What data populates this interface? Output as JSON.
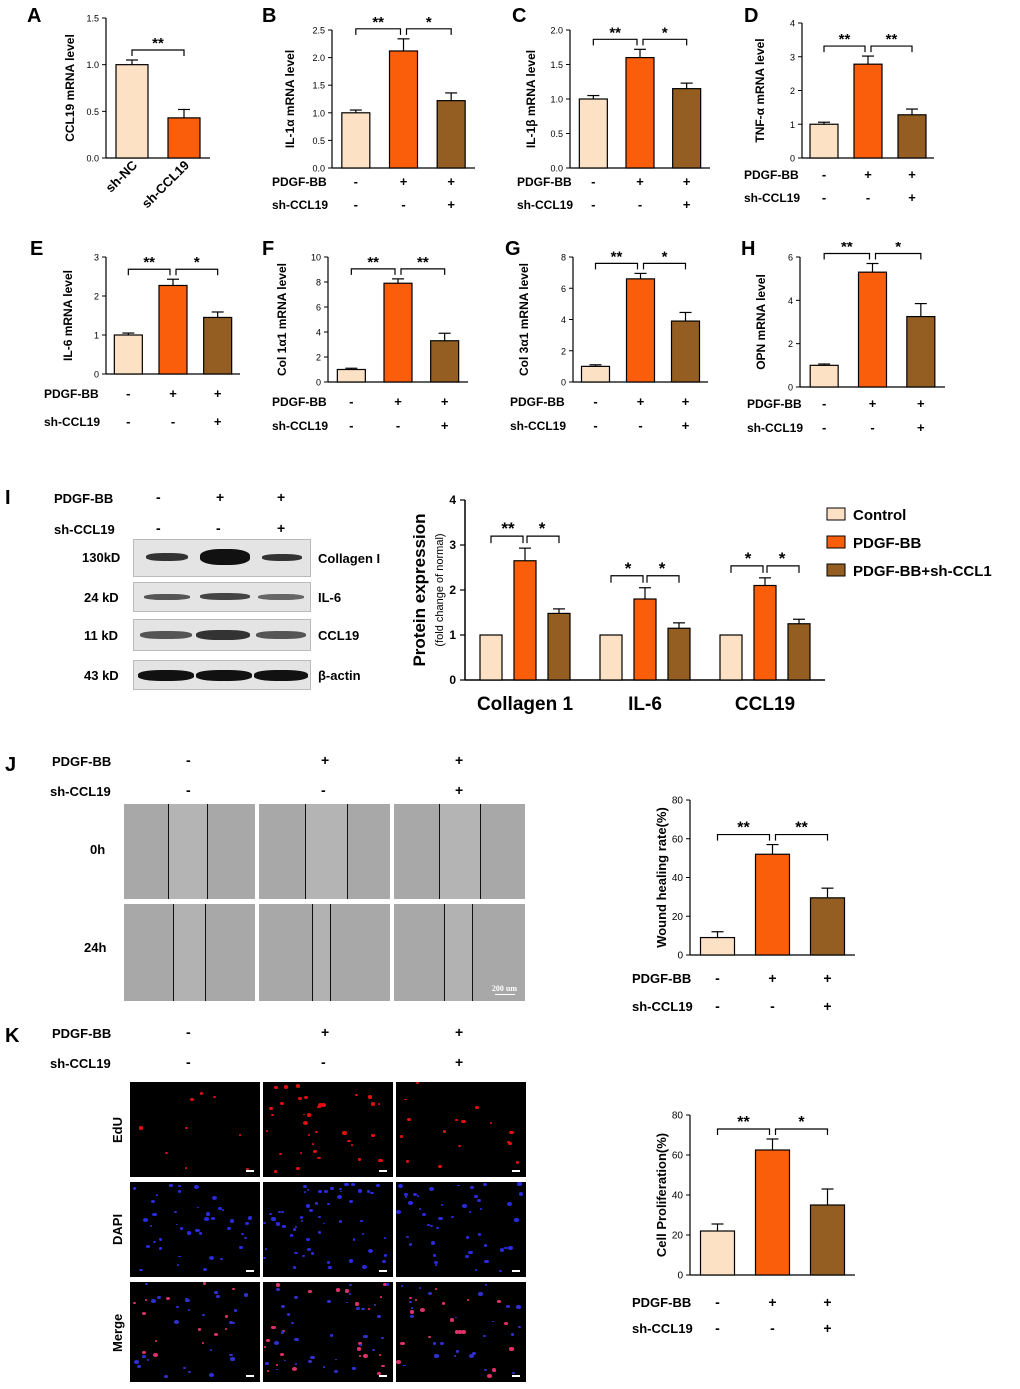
{
  "colors": {
    "control": "#FCE1C4",
    "pdgf": "#FB5E0A",
    "sh": "#945E22",
    "sem": "#000000"
  },
  "panels": {
    "A": "A",
    "B": "B",
    "C": "C",
    "D": "D",
    "E": "E",
    "F": "F",
    "G": "G",
    "H": "H",
    "I": "I",
    "J": "J",
    "K": "K"
  },
  "chart_data": [
    {
      "id": "A",
      "type": "bar",
      "ylabel": "CCL19 mRNA level",
      "categories": [
        "sh-NC",
        "sh-CCL19"
      ],
      "values": [
        1.0,
        0.43
      ],
      "errors": [
        0.05,
        0.09
      ],
      "ylim": [
        0,
        1.5
      ],
      "ticks": [
        0.0,
        0.5,
        1.0,
        1.5
      ],
      "tick_labels": [
        "0.0",
        "0.5",
        "1.0",
        "1.5"
      ],
      "sig": [
        {
          "from": 0,
          "to": 1,
          "label": "**"
        }
      ]
    },
    {
      "id": "B",
      "type": "bar",
      "ylabel": "IL-1α mRNA level",
      "categories": [
        "Control",
        "PDGF-BB",
        "PDGF-BB+sh-CCL19"
      ],
      "values": [
        1.0,
        2.12,
        1.22
      ],
      "errors": [
        0.05,
        0.22,
        0.14
      ],
      "ylim": [
        0,
        2.5
      ],
      "ticks": [
        0.0,
        0.5,
        1.0,
        1.5,
        2.0,
        2.5
      ],
      "tick_labels": [
        "0.0",
        "0.5",
        "1.0",
        "1.5",
        "2.0",
        "2.5"
      ],
      "sig": [
        {
          "from": 0,
          "to": 1,
          "label": "**"
        },
        {
          "from": 1,
          "to": 2,
          "label": "*"
        }
      ]
    },
    {
      "id": "C",
      "type": "bar",
      "ylabel": "IL-1β mRNA level",
      "categories": [
        "Control",
        "PDGF-BB",
        "PDGF-BB+sh-CCL19"
      ],
      "values": [
        1.0,
        1.6,
        1.15
      ],
      "errors": [
        0.05,
        0.12,
        0.08
      ],
      "ylim": [
        0,
        2.0
      ],
      "ticks": [
        0.0,
        0.5,
        1.0,
        1.5,
        2.0
      ],
      "tick_labels": [
        "0.0",
        "0.5",
        "1.0",
        "1.5",
        "2.0"
      ],
      "sig": [
        {
          "from": 0,
          "to": 1,
          "label": "**"
        },
        {
          "from": 1,
          "to": 2,
          "label": "*"
        }
      ]
    },
    {
      "id": "D",
      "type": "bar",
      "ylabel": "TNF-α mRNA level",
      "categories": [
        "Control",
        "PDGF-BB",
        "PDGF-BB+sh-CCL19"
      ],
      "values": [
        1.0,
        2.78,
        1.28
      ],
      "errors": [
        0.06,
        0.24,
        0.17
      ],
      "ylim": [
        0,
        4
      ],
      "ticks": [
        0,
        1,
        2,
        3,
        4
      ],
      "tick_labels": [
        "0",
        "1",
        "2",
        "3",
        "4"
      ],
      "sig": [
        {
          "from": 0,
          "to": 1,
          "label": "**"
        },
        {
          "from": 1,
          "to": 2,
          "label": "**"
        }
      ]
    },
    {
      "id": "E",
      "type": "bar",
      "ylabel": "IL-6 mRNA level",
      "categories": [
        "Control",
        "PDGF-BB",
        "PDGF-BB+sh-CCL19"
      ],
      "values": [
        1.0,
        2.27,
        1.45
      ],
      "errors": [
        0.05,
        0.16,
        0.14
      ],
      "ylim": [
        0,
        3
      ],
      "ticks": [
        0,
        1,
        2,
        3
      ],
      "tick_labels": [
        "0",
        "1",
        "2",
        "3"
      ],
      "sig": [
        {
          "from": 0,
          "to": 1,
          "label": "**"
        },
        {
          "from": 1,
          "to": 2,
          "label": "*"
        }
      ]
    },
    {
      "id": "F",
      "type": "bar",
      "ylabel": "Col 1α1 mRNA level",
      "categories": [
        "Control",
        "PDGF-BB",
        "PDGF-BB+sh-CCL19"
      ],
      "values": [
        1.0,
        7.9,
        3.3
      ],
      "errors": [
        0.1,
        0.35,
        0.6
      ],
      "ylim": [
        0,
        10
      ],
      "ticks": [
        0,
        2,
        4,
        6,
        8,
        10
      ],
      "tick_labels": [
        "0",
        "2",
        "4",
        "6",
        "8",
        "10"
      ],
      "sig": [
        {
          "from": 0,
          "to": 1,
          "label": "**"
        },
        {
          "from": 1,
          "to": 2,
          "label": "**"
        }
      ]
    },
    {
      "id": "G",
      "type": "bar",
      "ylabel": "Col 3α1 mRNA level",
      "categories": [
        "Control",
        "PDGF-BB",
        "PDGF-BB+sh-CCL19"
      ],
      "values": [
        1.0,
        6.6,
        3.9
      ],
      "errors": [
        0.1,
        0.35,
        0.55
      ],
      "ylim": [
        0,
        8
      ],
      "ticks": [
        0,
        2,
        4,
        6,
        8
      ],
      "tick_labels": [
        "0",
        "2",
        "4",
        "6",
        "8"
      ],
      "sig": [
        {
          "from": 0,
          "to": 1,
          "label": "**"
        },
        {
          "from": 1,
          "to": 2,
          "label": "*"
        }
      ]
    },
    {
      "id": "H",
      "type": "bar",
      "ylabel": "OPN mRNA level",
      "categories": [
        "Control",
        "PDGF-BB",
        "PDGF-BB+sh-CCL19"
      ],
      "values": [
        1.0,
        5.3,
        3.25
      ],
      "errors": [
        0.06,
        0.4,
        0.6
      ],
      "ylim": [
        0,
        6
      ],
      "ticks": [
        0,
        2,
        4,
        6
      ],
      "tick_labels": [
        "0",
        "2",
        "4",
        "6"
      ],
      "sig": [
        {
          "from": 0,
          "to": 1,
          "label": "**"
        },
        {
          "from": 1,
          "to": 2,
          "label": "*"
        }
      ]
    },
    {
      "id": "I",
      "type": "bar",
      "ylabel": "Protein expression",
      "ylabel2": "(fold change of normal)",
      "categories": [
        "Collagen 1",
        "IL-6",
        "CCL19"
      ],
      "series": [
        {
          "name": "Control",
          "values": [
            1.0,
            1.0,
            1.0
          ],
          "errors": [
            0,
            0,
            0
          ]
        },
        {
          "name": "PDGF-BB",
          "values": [
            2.65,
            1.8,
            2.1
          ],
          "errors": [
            0.28,
            0.25,
            0.17
          ]
        },
        {
          "name": "PDGF-BB+sh-CCL1",
          "values": [
            1.48,
            1.15,
            1.25
          ],
          "errors": [
            0.1,
            0.12,
            0.1
          ]
        }
      ],
      "ylim": [
        0,
        4
      ],
      "ticks": [
        0,
        1,
        2,
        3,
        4
      ],
      "tick_labels": [
        "0",
        "1",
        "2",
        "3",
        "4"
      ],
      "sig": [
        [
          "**",
          "*"
        ],
        [
          "*",
          "*"
        ],
        [
          "*",
          "*"
        ]
      ],
      "legend": "right"
    },
    {
      "id": "J",
      "type": "bar",
      "ylabel": "Wound healing rate(%)",
      "categories": [
        "Control",
        "PDGF-BB",
        "PDGF-BB+sh-CCL19"
      ],
      "values": [
        9,
        52,
        29.5
      ],
      "errors": [
        3,
        5,
        5
      ],
      "ylim": [
        0,
        80
      ],
      "ticks": [
        0,
        20,
        40,
        60,
        80
      ],
      "tick_labels": [
        "0",
        "20",
        "40",
        "60",
        "80"
      ],
      "sig": [
        {
          "from": 0,
          "to": 1,
          "label": "**"
        },
        {
          "from": 1,
          "to": 2,
          "label": "**"
        }
      ]
    },
    {
      "id": "K",
      "type": "bar",
      "ylabel": "Cell Proliferation(%)",
      "categories": [
        "Control",
        "PDGF-BB",
        "PDGF-BB+sh-CCL19"
      ],
      "values": [
        22,
        62.5,
        35
      ],
      "errors": [
        3.5,
        5.5,
        8
      ],
      "ylim": [
        0,
        80
      ],
      "ticks": [
        0,
        20,
        40,
        60,
        80
      ],
      "tick_labels": [
        "0",
        "20",
        "40",
        "60",
        "80"
      ],
      "sig": [
        {
          "from": 0,
          "to": 1,
          "label": "**"
        },
        {
          "from": 1,
          "to": 2,
          "label": "*"
        }
      ]
    }
  ],
  "treat": {
    "pdgf": "PDGF-BB",
    "sh": "sh-CCL19",
    "signs_pdgf": [
      "-",
      "+",
      "+"
    ],
    "signs_sh": [
      "-",
      "-",
      "+"
    ]
  },
  "blot": {
    "head_pdgf": "PDGF-BB",
    "head_sh": "sh-CCL19",
    "signs_pdgf": [
      "-",
      "+",
      "+"
    ],
    "signs_sh": [
      "-",
      "-",
      "+"
    ],
    "rows": [
      {
        "kd": "130kD",
        "name": "Collagen I"
      },
      {
        "kd": "24  kD",
        "name": "IL-6"
      },
      {
        "kd": "11  kD",
        "name": "CCL19"
      },
      {
        "kd": "43  kD",
        "name": "β-actin"
      }
    ]
  },
  "wound": {
    "t0": "0h",
    "t24": "24h",
    "scale": "200 um"
  },
  "edu": {
    "rows": [
      "EdU",
      "DAPI",
      "Merge"
    ]
  }
}
